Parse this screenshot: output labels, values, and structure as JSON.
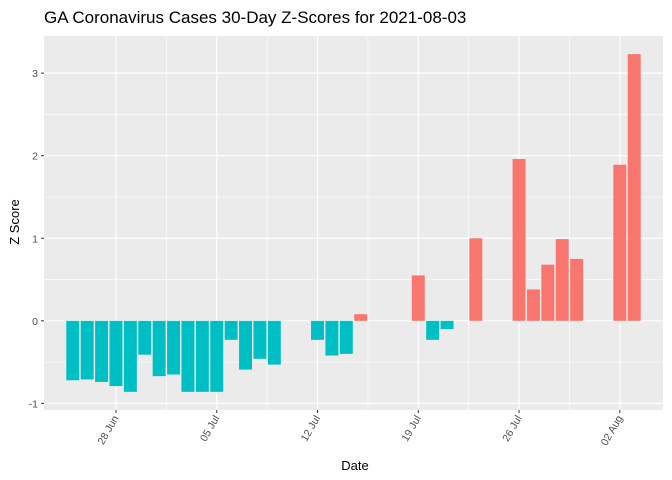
{
  "chart_data": {
    "type": "bar",
    "title": "GA Coronavirus Cases 30-Day Z-Scores for 2021-08-03",
    "xlabel": "Date",
    "ylabel": "Z Score",
    "ylim": [
      -1.08,
      3.45
    ],
    "yticks": [
      -1,
      0,
      1,
      2,
      3
    ],
    "xlim": [
      "2021-06-23",
      "2021-08-05"
    ],
    "xticks": [
      {
        "date": "2021-06-28",
        "label": "28 Jun"
      },
      {
        "date": "2021-07-05",
        "label": "05 Jul"
      },
      {
        "date": "2021-07-12",
        "label": "12 Jul"
      },
      {
        "date": "2021-07-19",
        "label": "19 Jul"
      },
      {
        "date": "2021-07-26",
        "label": "26 Jul"
      },
      {
        "date": "2021-08-02",
        "label": "02 Aug"
      }
    ],
    "fill_rule": "positive values red, negative values teal",
    "colors": {
      "positive": "#F8766D",
      "negative": "#00BFC4",
      "panel": "#EBEBEB",
      "grid": "#FFFFFF"
    },
    "dates": [
      "2021-06-25",
      "2021-06-26",
      "2021-06-27",
      "2021-06-28",
      "2021-06-29",
      "2021-06-30",
      "2021-07-01",
      "2021-07-02",
      "2021-07-03",
      "2021-07-04",
      "2021-07-05",
      "2021-07-06",
      "2021-07-07",
      "2021-07-08",
      "2021-07-09",
      "2021-07-12",
      "2021-07-13",
      "2021-07-14",
      "2021-07-15",
      "2021-07-19",
      "2021-07-20",
      "2021-07-21",
      "2021-07-23",
      "2021-07-26",
      "2021-07-27",
      "2021-07-28",
      "2021-07-29",
      "2021-07-30",
      "2021-08-02",
      "2021-08-03"
    ],
    "values": [
      -0.72,
      -0.71,
      -0.74,
      -0.79,
      -0.86,
      -0.41,
      -0.67,
      -0.65,
      -0.86,
      -0.86,
      -0.86,
      -0.23,
      -0.59,
      -0.46,
      -0.53,
      -0.23,
      -0.42,
      -0.4,
      0.08,
      0.55,
      -0.23,
      -0.1,
      1.0,
      1.96,
      0.38,
      0.68,
      0.99,
      0.75,
      1.89,
      3.23
    ]
  }
}
